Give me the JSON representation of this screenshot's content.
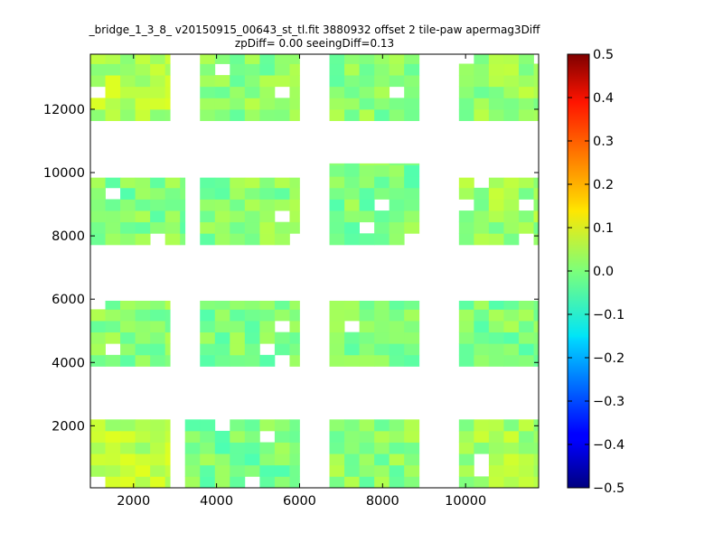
{
  "chart_data": {
    "type": "heatmap",
    "title": "_bridge_1_3_8_ v20150915_00643_st_tl.fit 3880932 offset 2 tile-paw apermag3Diff",
    "subtitle": "zpDiff= 0.00 seeingDiff=0.13",
    "xlim": [
      960,
      11760
    ],
    "ylim": [
      40,
      13740
    ],
    "x_ticks": [
      "2000",
      "4000",
      "6000",
      "8000",
      "10000"
    ],
    "y_ticks": [
      "2000",
      "4000",
      "6000",
      "8000",
      "10000",
      "12000"
    ],
    "colorbar": {
      "colormap": "jet",
      "range": [
        -0.5,
        0.5
      ],
      "ticks": [
        "0.5",
        "0.4",
        "0.3",
        "0.2",
        "0.1",
        "0.0",
        "−0.1",
        "−0.2",
        "−0.3",
        "−0.4",
        "−0.5"
      ]
    },
    "cell_size": [
      360,
      360
    ],
    "panels": [
      {
        "x0": 960,
        "x1": 2880,
        "y0": 40,
        "y1": 2200,
        "base": 0.055
      },
      {
        "x0": 3240,
        "x1": 6000,
        "y0": 40,
        "y1": 2200,
        "base": -0.005
      },
      {
        "x0": 6720,
        "x1": 8880,
        "y0": 40,
        "y1": 2200,
        "base": 0.01
      },
      {
        "x0": 9840,
        "x1": 11760,
        "y0": 40,
        "y1": 2200,
        "base": 0.035
      },
      {
        "x0": 960,
        "x1": 2880,
        "y0": 3880,
        "y1": 5950,
        "base": 0.01
      },
      {
        "x0": 3600,
        "x1": 6000,
        "y0": 3880,
        "y1": 5950,
        "base": 0.0
      },
      {
        "x0": 6720,
        "x1": 8880,
        "y0": 3880,
        "y1": 5950,
        "base": 0.005
      },
      {
        "x0": 9840,
        "x1": 11760,
        "y0": 3880,
        "y1": 5950,
        "base": 0.0
      },
      {
        "x0": 960,
        "x1": 3240,
        "y0": 7720,
        "y1": 9840,
        "base": 0.0
      },
      {
        "x0": 3600,
        "x1": 6000,
        "y0": 7720,
        "y1": 9840,
        "base": 0.01
      },
      {
        "x0": 6720,
        "x1": 8880,
        "y0": 7720,
        "y1": 10290,
        "base": 0.0
      },
      {
        "x0": 9840,
        "x1": 11760,
        "y0": 7720,
        "y1": 9840,
        "base": 0.03
      },
      {
        "x0": 960,
        "x1": 2880,
        "y0": 11640,
        "y1": 13740,
        "base": 0.05
      },
      {
        "x0": 3600,
        "x1": 6000,
        "y0": 11640,
        "y1": 13740,
        "base": 0.015
      },
      {
        "x0": 6720,
        "x1": 8880,
        "y0": 11640,
        "y1": 13740,
        "base": 0.01
      },
      {
        "x0": 9840,
        "x1": 11760,
        "y0": 11640,
        "y1": 13740,
        "base": 0.02
      }
    ]
  }
}
